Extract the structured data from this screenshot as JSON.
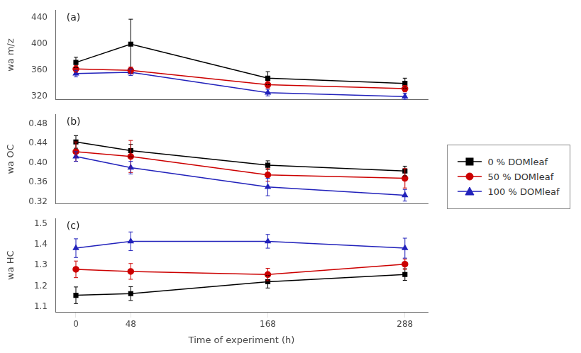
{
  "chart_data": [
    {
      "type": "line",
      "annotation": "(a)",
      "ylabel": "wa m/z",
      "x": [
        0,
        48,
        168,
        288
      ],
      "xlim": [
        -18,
        308
      ],
      "xticks": [
        0,
        48,
        168,
        288
      ],
      "ylim": [
        315,
        452
      ],
      "yticks": [
        320,
        360,
        400,
        440
      ],
      "grid": false,
      "tick_labels": "y",
      "legend": "right",
      "series": [
        {
          "name": "0 % DOMleaf",
          "color": "#000000",
          "marker": "square",
          "values": [
            372,
            400,
            348,
            340
          ],
          "yerr": [
            8,
            38,
            10,
            8
          ]
        },
        {
          "name": "50 % DOMleaf",
          "color": "#cc0000",
          "marker": "circle",
          "values": [
            362,
            360,
            338,
            332
          ],
          "yerr": [
            5,
            5,
            5,
            5
          ]
        },
        {
          "name": "100 % DOMleaf",
          "color": "#2222bb",
          "marker": "triangle",
          "values": [
            355,
            357,
            326,
            320
          ],
          "yerr": [
            5,
            5,
            5,
            5
          ]
        }
      ]
    },
    {
      "type": "line",
      "annotation": "(b)",
      "ylabel": "wa OC",
      "x": [
        0,
        48,
        168,
        288
      ],
      "xlim": [
        -18,
        308
      ],
      "xticks": [
        0,
        48,
        168,
        288
      ],
      "ylim": [
        0.315,
        0.5
      ],
      "yticks": [
        0.32,
        0.36,
        {
          "value": 0.4,
          "label": "0.40"
        },
        0.44,
        0.48
      ],
      "grid": false,
      "tick_labels": "y",
      "series": [
        {
          "name": "0 % DOMleaf",
          "color": "#000000",
          "marker": "square",
          "values": [
            0.443,
            0.425,
            0.395,
            0.383
          ],
          "yerr": [
            0.013,
            0.013,
            0.009,
            0.01
          ]
        },
        {
          "name": "50 % DOMleaf",
          "color": "#cc0000",
          "marker": "circle",
          "values": [
            0.423,
            0.413,
            0.375,
            0.368
          ],
          "yerr": [
            0.02,
            0.033,
            0.013,
            0.02
          ]
        },
        {
          "name": "100 % DOMleaf",
          "color": "#2222bb",
          "marker": "triangle",
          "values": [
            0.413,
            0.39,
            0.35,
            0.333
          ],
          "yerr": [
            0.01,
            0.013,
            0.018,
            0.012
          ]
        }
      ]
    },
    {
      "type": "line",
      "annotation": "(c)",
      "ylabel": "wa HC",
      "xlabel": "Time of experiment (h)",
      "x": [
        0,
        48,
        168,
        288
      ],
      "xlim": [
        -18,
        308
      ],
      "xticks": [
        0,
        48,
        168,
        288
      ],
      "ylim": [
        1.075,
        1.525
      ],
      "yticks": [
        1.1,
        1.2,
        1.3,
        1.4,
        1.5
      ],
      "grid": false,
      "series": [
        {
          "name": "0 % DOMleaf",
          "color": "#000000",
          "marker": "square",
          "values": [
            1.155,
            1.163,
            1.22,
            1.255
          ],
          "yerr": [
            0.04,
            0.033,
            0.03,
            0.028
          ]
        },
        {
          "name": "50 % DOMleaf",
          "color": "#cc0000",
          "marker": "circle",
          "values": [
            1.28,
            1.27,
            1.255,
            1.305
          ],
          "yerr": [
            0.04,
            0.038,
            0.03,
            0.025
          ]
        },
        {
          "name": "100 % DOMleaf",
          "color": "#2222bb",
          "marker": "triangle",
          "values": [
            1.382,
            1.415,
            1.415,
            1.382
          ],
          "yerr": [
            0.045,
            0.045,
            0.033,
            0.048
          ]
        }
      ]
    }
  ]
}
